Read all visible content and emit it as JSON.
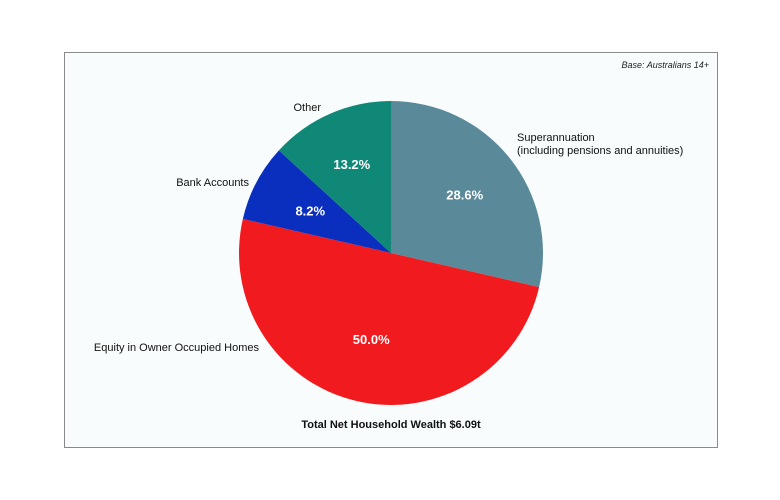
{
  "note": "Base: Australians 14+",
  "chart_data": {
    "type": "pie",
    "title": "",
    "footer": "Total Net Household Wealth $6.09t",
    "slices": [
      {
        "label": "Superannuation",
        "label_line2": "(including pensions and annuities)",
        "value": 28.6,
        "display": "28.6%",
        "color": "#5a8a9a"
      },
      {
        "label": "Equity in Owner Occupied Homes",
        "label_line2": "",
        "value": 50.0,
        "display": "50.0%",
        "color": "#f11b1f"
      },
      {
        "label": "Bank Accounts",
        "label_line2": "",
        "value": 8.2,
        "display": "8.2%",
        "color": "#0a2fbf"
      },
      {
        "label": "Other",
        "label_line2": "",
        "value": 13.2,
        "display": "13.2%",
        "color": "#108877"
      }
    ]
  }
}
